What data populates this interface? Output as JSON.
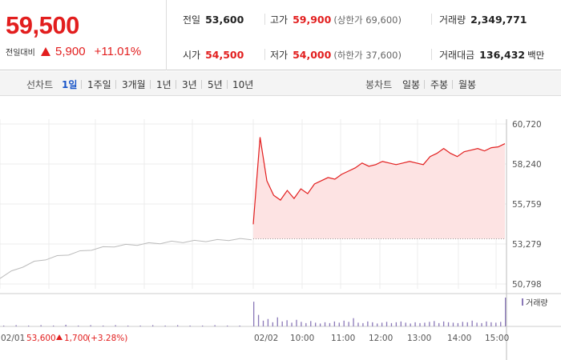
{
  "price": {
    "current": "59,500",
    "change_label": "전일대비",
    "change_value": "5,900",
    "change_pct": "+11.01%"
  },
  "stats": {
    "prev_close": {
      "label": "전일",
      "value": "53,600"
    },
    "high": {
      "label": "고가",
      "value": "59,900",
      "sub": "(상한가 69,600)"
    },
    "volume": {
      "label": "거래량",
      "value": "2,349,771"
    },
    "open": {
      "label": "시가",
      "value": "54,500"
    },
    "low": {
      "label": "저가",
      "value": "54,000",
      "sub": "(하한가 37,600)"
    },
    "trade_amount": {
      "label": "거래대금",
      "value": "136,432",
      "unit": "백만"
    }
  },
  "toolbar": {
    "line_chart_label": "선차트",
    "periods": [
      "1일",
      "1주일",
      "3개월",
      "1년",
      "3년",
      "5년",
      "10년"
    ],
    "active_period": "1일",
    "candle_chart_label": "봉차트",
    "candle_periods": [
      "일봉",
      "주봉",
      "월봉"
    ]
  },
  "colors": {
    "up": "#e21e1e",
    "active_tab": "#1a56c9",
    "area_fill": "#fde3e3",
    "prev_day_line": "#bbbbbb",
    "volume_bar": "#8a78b8"
  },
  "chart_data": {
    "type": "line",
    "y_ticks": [
      "60,720",
      "58,240",
      "55,759",
      "53,279",
      "50,798"
    ],
    "y_tick_values": [
      60720,
      58240,
      55759,
      53279,
      50798
    ],
    "ylim": [
      50798,
      60720
    ],
    "grid": true,
    "prev_day": {
      "date_label": "02/01",
      "summary_price": "53,600",
      "summary_change": "1,700",
      "summary_pct": "(+3.28%)",
      "values": [
        51200,
        51550,
        51900,
        52150,
        52350,
        52500,
        52650,
        52800,
        52950,
        53050,
        53150,
        53200,
        53250,
        53300,
        53350,
        53400,
        53420,
        53450,
        53480,
        53500,
        53550,
        53560,
        53600
      ]
    },
    "today": {
      "date_label": "02/02",
      "baseline": 53600,
      "time_labels": [
        "10:00",
        "11:00",
        "12:00",
        "13:00",
        "14:00",
        "15:00"
      ],
      "values": [
        54500,
        59900,
        57200,
        56300,
        56000,
        56600,
        56100,
        56700,
        56400,
        57000,
        57200,
        57400,
        57300,
        57600,
        57800,
        58000,
        58300,
        58100,
        58200,
        58400,
        58300,
        58200,
        58300,
        58400,
        58300,
        58200,
        58700,
        58900,
        59200,
        58900,
        58700,
        59000,
        59100,
        59200,
        59050,
        59250,
        59300,
        59500
      ]
    },
    "volume_legend": "거래량",
    "volume_values": [
      2,
      3,
      2,
      3,
      2,
      4,
      2,
      3,
      2,
      3,
      2,
      2,
      3,
      2,
      3,
      2,
      2,
      3,
      2,
      2,
      60,
      28,
      14,
      18,
      10,
      22,
      12,
      15,
      9,
      16,
      11,
      8,
      13,
      9,
      7,
      10,
      8,
      12,
      9,
      14,
      11,
      20,
      9,
      8,
      12,
      10,
      7,
      9,
      11,
      8,
      10,
      12,
      9,
      7,
      10,
      8,
      9,
      11,
      13,
      8,
      12,
      10,
      9,
      8,
      11,
      10,
      14,
      9,
      8,
      12,
      10,
      9,
      11,
      70
    ]
  }
}
